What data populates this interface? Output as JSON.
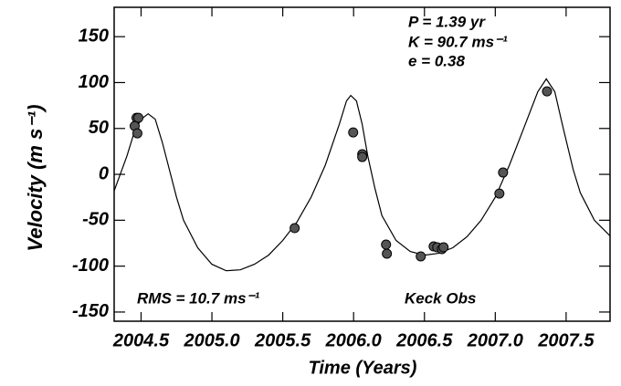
{
  "chart_data": {
    "type": "scatter",
    "xlabel": "Time  (Years)",
    "ylabel": "Velocity  (m s⁻¹)",
    "annotations": [
      "P = 1.39 yr",
      "K = 90.7 ms⁻¹",
      "e = 0.38",
      "RMS = 10.7 ms⁻¹",
      "Keck Obs"
    ],
    "xlim": [
      2004.31,
      2007.81
    ],
    "ylim": [
      -160,
      182
    ],
    "xticks": [
      2004.5,
      {
        "value": 2005.0,
        "label": "2005.0"
      },
      2005.5,
      {
        "value": 2006.0,
        "label": "2006.0"
      },
      2006.5,
      {
        "value": 2007.0,
        "label": "2007.0"
      },
      2007.5
    ],
    "yticks": [
      -150,
      -100,
      -50,
      0,
      50,
      100,
      150
    ],
    "series": [
      {
        "type": "line",
        "color": "#000000",
        "x": [
          2004.31,
          2004.4,
          2004.45,
          2004.5,
          2004.55,
          2004.6,
          2004.65,
          2004.7,
          2004.75,
          2004.8,
          2004.9,
          2005.0,
          2005.1,
          2005.2,
          2005.3,
          2005.4,
          2005.5,
          2005.6,
          2005.7,
          2005.8,
          2005.9,
          2005.95,
          2005.98,
          2006.02,
          2006.06,
          2006.1,
          2006.15,
          2006.2,
          2006.3,
          2006.4,
          2006.5,
          2006.6,
          2006.7,
          2006.8,
          2006.9,
          2007.0,
          2007.1,
          2007.2,
          2007.3,
          2007.36,
          2007.42,
          2007.48,
          2007.55,
          2007.6,
          2007.7,
          2007.81
        ],
        "values": [
          -18,
          20,
          45,
          60,
          66,
          60,
          35,
          5,
          -25,
          -50,
          -80,
          -98,
          -105,
          -104,
          -98,
          -88,
          -72,
          -52,
          -25,
          10,
          55,
          80,
          86,
          80,
          55,
          20,
          -15,
          -45,
          -72,
          -84,
          -88,
          -86,
          -80,
          -68,
          -50,
          -25,
          10,
          50,
          90,
          104,
          90,
          50,
          5,
          -20,
          -50,
          -67
        ]
      },
      {
        "type": "markers",
        "color": "#555555",
        "x": [
          2004.468,
          2004.481,
          2004.455,
          2004.474,
          2005.584,
          2005.997,
          2006.061,
          2006.061,
          2006.229,
          2006.235,
          2006.474,
          2006.565,
          2006.59,
          2006.623,
          2006.635,
          2007.029,
          2007.055,
          2007.365
        ],
        "values": [
          61.6,
          61.6,
          52.6,
          44.7,
          -58.6,
          45.7,
          21.9,
          18.9,
          -76.5,
          -86.4,
          -89.4,
          -78.5,
          -79.5,
          -81.5,
          -79.5,
          -20.9,
          2.0,
          90.4
        ]
      }
    ]
  }
}
